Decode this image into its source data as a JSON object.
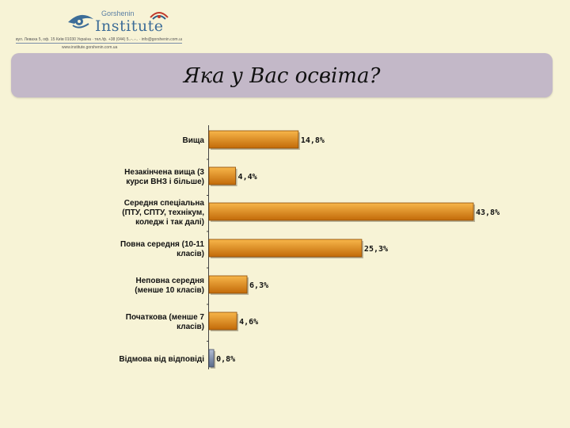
{
  "header": {
    "logo_name": "Gorshenin",
    "logo_institute": "Institute",
    "address": "вул. Леваха 5, оф. 15 Київ 01030 Україна · тел./ф. +38 (044) 5..-..-.. · info@gorshenin.com.ua",
    "website": "www.institute.gorshenin.com.ua"
  },
  "title": "Яка у Вас освіта?",
  "chart_data": {
    "type": "bar",
    "orientation": "horizontal",
    "categories": [
      [
        "Вища"
      ],
      [
        "Незакінчена вища (3",
        "курси ВНЗ і більше)"
      ],
      [
        "Середня спеціальна",
        "(ПТУ, СПТУ, технікум,",
        "коледж і так далі)"
      ],
      [
        "Повна середня (10-11",
        "класів)"
      ],
      [
        "Неповна середня",
        "(менше 10 класів)"
      ],
      [
        "Початкова (менше 7",
        "класів)"
      ],
      [
        "Відмова від відповіді"
      ]
    ],
    "values": [
      14.8,
      4.4,
      43.8,
      25.3,
      6.3,
      4.6,
      0.8
    ],
    "value_labels": [
      "14,8%",
      "4,4%",
      "43,8%",
      "25,3%",
      "6,3%",
      "4,6%",
      "0,8%"
    ],
    "bar_colors": [
      "orange",
      "orange",
      "orange",
      "orange",
      "orange",
      "orange",
      "gray-blue"
    ],
    "colors": {
      "bar_light": "#f7b64a",
      "bar_dark": "#c26a08",
      "refusal_light": "#b4bfd6",
      "refusal_dark": "#5a6a8a"
    },
    "xlim": [
      0,
      45
    ],
    "title": "",
    "xlabel": "",
    "ylabel": "",
    "grid": false,
    "legend": "none"
  }
}
